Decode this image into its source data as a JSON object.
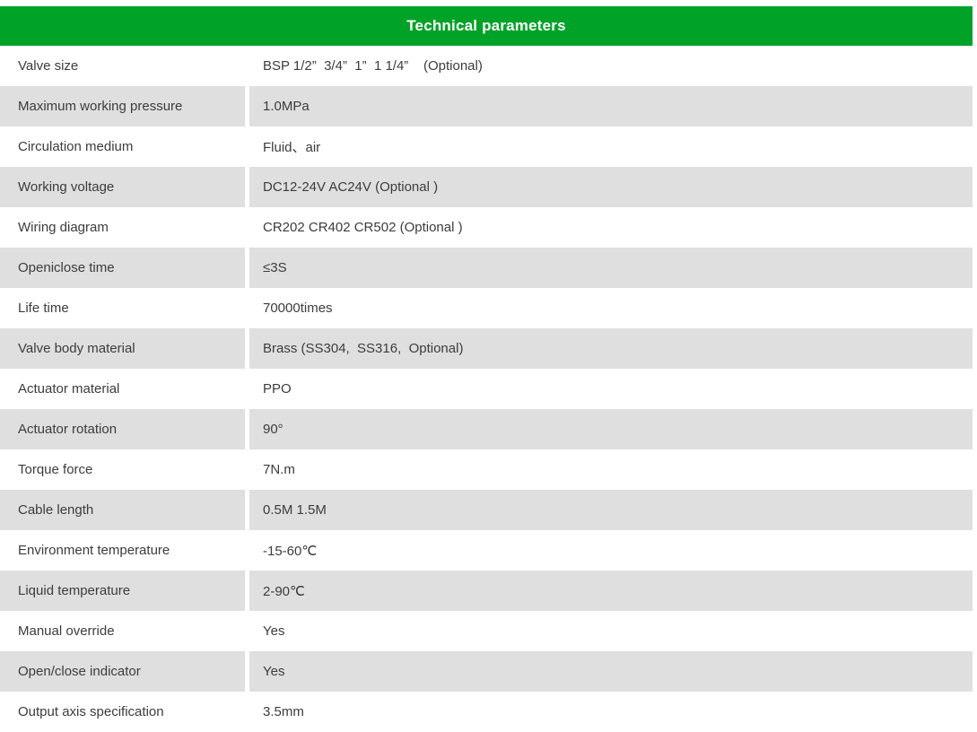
{
  "header": {
    "title": "Technical parameters",
    "bar_color": "#00a228",
    "text_color": "#ffffff"
  },
  "table": {
    "alt_row_color": "#dfdfdf",
    "columns": [
      "parameter",
      "value"
    ],
    "rows": [
      {
        "label": "Valve size",
        "value": "BSP 1/2”  3/4”  1”  1 1/4”    (Optional)"
      },
      {
        "label": "Maximum working pressure",
        "value": "1.0MPa"
      },
      {
        "label": "Circulation medium",
        "value": "Fluid、air"
      },
      {
        "label": "Working voltage",
        "value": "DC12-24V AC24V (Optional )"
      },
      {
        "label": "Wiring diagram",
        "value": "CR202 CR402 CR502 (Optional )"
      },
      {
        "label": "Openiclose time",
        "value": "≤3S"
      },
      {
        "label": "Life time",
        "value": "70000times"
      },
      {
        "label": "Valve body material",
        "value": "Brass (SS304,  SS316,  Optional)"
      },
      {
        "label": "Actuator material",
        "value": "PPO"
      },
      {
        "label": "Actuator rotation",
        "value": "90°"
      },
      {
        "label": "Torque force",
        "value": "7N.m"
      },
      {
        "label": "Cable length",
        "value": "0.5M 1.5M"
      },
      {
        "label": "Environment temperature",
        "value": "-15-60℃"
      },
      {
        "label": "Liquid temperature",
        "value": "2-90℃"
      },
      {
        "label": "Manual override",
        "value": "Yes"
      },
      {
        "label": "Open/close indicator",
        "value": "Yes"
      },
      {
        "label": "Output axis specification",
        "value": "3.5mm"
      }
    ]
  }
}
